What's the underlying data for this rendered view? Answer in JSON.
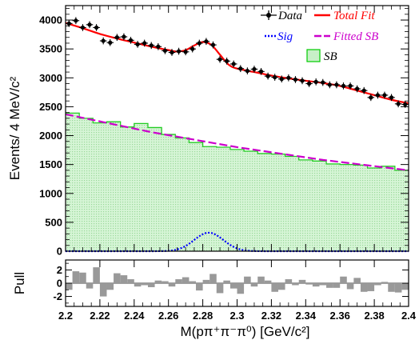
{
  "chart_data": [
    {
      "type": "line",
      "panel": "fit",
      "xlabel": "M(pπ⁺π⁻π⁰) [GeV/c²]",
      "ylabel": "Events/ 4 MeV/c²",
      "xlim": [
        2.2,
        2.4
      ],
      "ylim": [
        0,
        4250
      ],
      "x_ticks": [
        "2.2",
        "2.22",
        "2.24",
        "2.26",
        "2.28",
        "2.3",
        "2.32",
        "2.34",
        "2.36",
        "2.38",
        "2.4"
      ],
      "y_ticks": [
        "0",
        "500",
        "1000",
        "1500",
        "2000",
        "2500",
        "3000",
        "3500",
        "4000"
      ],
      "legend_position": "top-right",
      "legend": [
        {
          "key": "data",
          "label": "Data",
          "color": "#000000"
        },
        {
          "key": "fit",
          "label": "Total Fit",
          "color": "#ff0000"
        },
        {
          "key": "sig",
          "label": "Sig",
          "color": "#0000ff"
        },
        {
          "key": "fsb",
          "label": "Fitted SB",
          "color": "#cc00cc"
        },
        {
          "key": "sb",
          "label": "SB",
          "color": "#00cc00"
        }
      ],
      "bin_width": 0.004,
      "data_points": {
        "x": [
          2.202,
          2.206,
          2.21,
          2.214,
          2.218,
          2.222,
          2.226,
          2.23,
          2.234,
          2.238,
          2.242,
          2.246,
          2.25,
          2.254,
          2.258,
          2.262,
          2.266,
          2.27,
          2.274,
          2.278,
          2.282,
          2.286,
          2.29,
          2.294,
          2.298,
          2.302,
          2.306,
          2.31,
          2.314,
          2.318,
          2.322,
          2.326,
          2.33,
          2.334,
          2.338,
          2.342,
          2.346,
          2.35,
          2.354,
          2.358,
          2.362,
          2.366,
          2.37,
          2.374,
          2.378,
          2.382,
          2.386,
          2.39,
          2.394,
          2.398
        ],
        "y": [
          3940,
          3990,
          3870,
          3920,
          3870,
          3640,
          3610,
          3700,
          3710,
          3650,
          3580,
          3600,
          3560,
          3540,
          3470,
          3440,
          3460,
          3450,
          3500,
          3600,
          3630,
          3570,
          3320,
          3290,
          3240,
          3160,
          3120,
          3150,
          3110,
          3030,
          3010,
          2980,
          3000,
          2970,
          2950,
          2900,
          2930,
          2920,
          2880,
          2880,
          2860,
          2860,
          2810,
          2780,
          2660,
          2700,
          2700,
          2660,
          2550,
          2540
        ],
        "yerr": 60
      },
      "total_fit": {
        "x": [
          2.2,
          2.21,
          2.22,
          2.23,
          2.24,
          2.25,
          2.26,
          2.265,
          2.27,
          2.275,
          2.28,
          2.285,
          2.29,
          2.295,
          2.3,
          2.31,
          2.32,
          2.33,
          2.34,
          2.35,
          2.36,
          2.37,
          2.38,
          2.39,
          2.4
        ],
        "y": [
          3950,
          3860,
          3760,
          3680,
          3610,
          3540,
          3480,
          3455,
          3480,
          3560,
          3620,
          3570,
          3400,
          3230,
          3160,
          3100,
          3040,
          2990,
          2950,
          2910,
          2860,
          2780,
          2700,
          2620,
          2560
        ]
      },
      "signal": {
        "mean": 2.2835,
        "sigma": 0.0085,
        "peak": 320
      },
      "fitted_sb": {
        "x": [
          2.2,
          2.25,
          2.3,
          2.35,
          2.4
        ],
        "y": [
          2370,
          2060,
          1800,
          1580,
          1400
        ]
      },
      "sb_hist": {
        "edges": [
          2.2,
          2.208,
          2.216,
          2.224,
          2.232,
          2.24,
          2.248,
          2.256,
          2.264,
          2.272,
          2.28,
          2.288,
          2.296,
          2.304,
          2.312,
          2.32,
          2.328,
          2.336,
          2.344,
          2.352,
          2.36,
          2.368,
          2.376,
          2.384,
          2.392,
          2.4
        ],
        "values": [
          2390,
          2300,
          2220,
          2240,
          2150,
          2210,
          2140,
          2020,
          1960,
          1880,
          1810,
          1800,
          1760,
          1730,
          1690,
          1680,
          1640,
          1580,
          1560,
          1510,
          1500,
          1490,
          1440,
          1470,
          1400
        ]
      }
    },
    {
      "type": "bar",
      "panel": "pull",
      "ylabel": "Pull",
      "xlim": [
        2.2,
        2.4
      ],
      "ylim": [
        -3.5,
        3.5
      ],
      "y_ticks": [
        "2",
        "0",
        "-2"
      ],
      "x": [
        2.202,
        2.206,
        2.21,
        2.214,
        2.218,
        2.222,
        2.226,
        2.23,
        2.234,
        2.238,
        2.242,
        2.246,
        2.25,
        2.254,
        2.258,
        2.262,
        2.266,
        2.27,
        2.274,
        2.278,
        2.282,
        2.286,
        2.29,
        2.294,
        2.298,
        2.302,
        2.306,
        2.31,
        2.314,
        2.318,
        2.322,
        2.326,
        2.33,
        2.334,
        2.338,
        2.342,
        2.346,
        2.35,
        2.354,
        2.358,
        2.362,
        2.366,
        2.37,
        2.374,
        2.378,
        2.382,
        2.386,
        2.39,
        2.394,
        2.398
      ],
      "values": [
        -1.0,
        1.8,
        1.6,
        -0.8,
        2.4,
        -2.0,
        -1.0,
        1.5,
        1.2,
        0.6,
        -0.5,
        -0.3,
        -0.6,
        0.4,
        0.3,
        -0.5,
        0.6,
        0.9,
        0.3,
        -1.1,
        0.5,
        1.4,
        -1.5,
        0.4,
        -0.8,
        -1.6,
        1.0,
        -0.5,
        1.0,
        0.4,
        -1.3,
        -1.0,
        0.6,
        -0.3,
        0.5,
        -0.2,
        -0.5,
        -0.3,
        -0.7,
        -0.7,
        1.0,
        -0.9,
        0.8,
        -1.3,
        -1.2,
        -0.3,
        0.2,
        -1.3,
        -1.4,
        -1.0
      ]
    }
  ]
}
